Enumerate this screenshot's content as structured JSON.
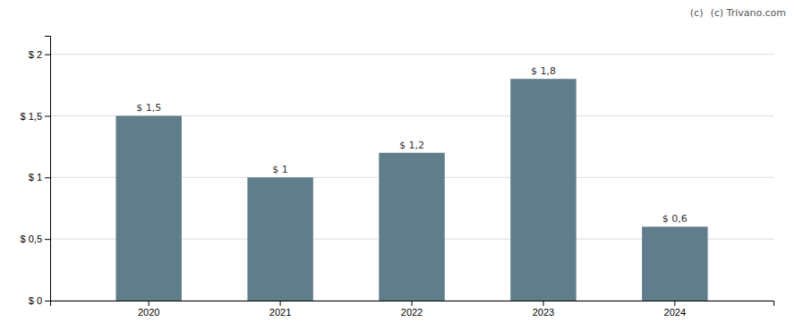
{
  "chart_data": {
    "type": "bar",
    "categories": [
      "2020",
      "2021",
      "2022",
      "2023",
      "2024"
    ],
    "values": [
      1.5,
      1.0,
      1.2,
      1.8,
      0.6
    ],
    "value_labels": [
      "$ 1,5",
      "$ 1",
      "$ 1,2",
      "$ 1,8",
      "$ 0,6"
    ],
    "data_labels": true,
    "color": "#607d8b",
    "ylim": [
      0,
      2.15
    ],
    "yticks": [
      {
        "value": 0,
        "label": "$ 0"
      },
      {
        "value": 0.5,
        "label": "$ 0,5"
      },
      {
        "value": 1.0,
        "label": "$ 1"
      },
      {
        "value": 1.5,
        "label": "$ 1,5"
      },
      {
        "value": 2.0,
        "label": "$ 2"
      }
    ],
    "grid": true,
    "annotations": [
      "(c) Trivano.com",
      "(c)"
    ]
  }
}
